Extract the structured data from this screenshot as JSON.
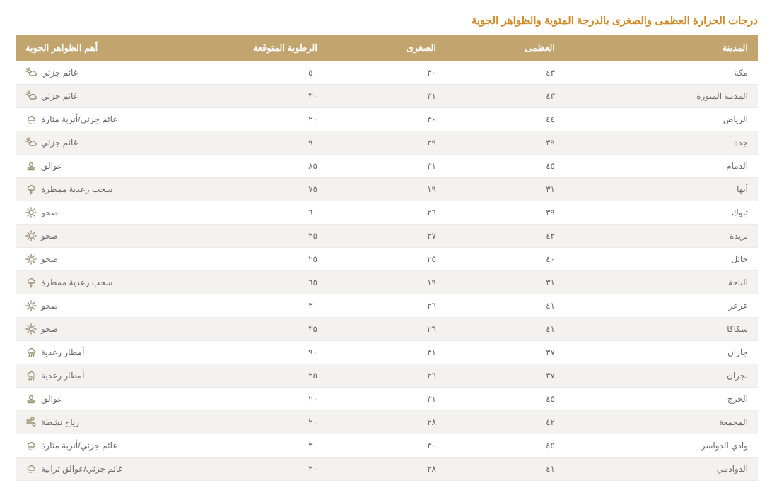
{
  "title": "درجات الحرارة العظمى والصغرى بالدرجة المئوية والظواهر الجوية",
  "title_color": "#d08c2a",
  "header_bg": "#c2a46f",
  "row_alt_bg": "#f3f2ee",
  "row_bg": "#ffffff",
  "border_color": "#eaeaea",
  "columns": {
    "city": "المدينة",
    "high": "العظمى",
    "low": "الصغرى",
    "humidity": "الرطوبة المتوقعة",
    "phenomena": "أهم الظواهر الجوية"
  },
  "icon_labels": {
    "partly_cloudy": "غائم جزئي",
    "dusty": "غائم جزئي/أتربة مثارة",
    "hazy": "عوالق",
    "thunder": "سحب رعدية ممطرة",
    "clear": "صحو",
    "thunder_rain": "أمطار رعدية",
    "windy": "رياح نشطة",
    "dust_haze": "غائم جزئي/عوالق ترابية"
  },
  "rows": [
    {
      "city": "مكة",
      "high": "٤٣",
      "low": "٣٠",
      "humidity": "٥٠",
      "phen": "غائم جزئي",
      "icon": "partly_cloudy"
    },
    {
      "city": "المدينة المنورة",
      "high": "٤٣",
      "low": "٣١",
      "humidity": "٣٠",
      "phen": "غائم جزئي",
      "icon": "partly_cloudy"
    },
    {
      "city": "الرياض",
      "high": "٤٤",
      "low": "٣٠",
      "humidity": "٢٠",
      "phen": "غائم جزئي/أتربة مثارة",
      "icon": "dusty"
    },
    {
      "city": "جدة",
      "high": "٣٩",
      "low": "٢٩",
      "humidity": "٩٠",
      "phen": "غائم جزئي",
      "icon": "partly_cloudy"
    },
    {
      "city": "الدمام",
      "high": "٤٥",
      "low": "٣١",
      "humidity": "٨٥",
      "phen": "عوالق",
      "icon": "hazy"
    },
    {
      "city": "أبها",
      "high": "٣١",
      "low": "١٩",
      "humidity": "٧٥",
      "phen": "سحب رعدية ممطرة",
      "icon": "thunder"
    },
    {
      "city": "تبوك",
      "high": "٣٩",
      "low": "٢٦",
      "humidity": "٦٠",
      "phen": "صحو",
      "icon": "clear"
    },
    {
      "city": "بريدة",
      "high": "٤٢",
      "low": "٢٧",
      "humidity": "٢٥",
      "phen": "صحو",
      "icon": "clear"
    },
    {
      "city": "حائل",
      "high": "٤٠",
      "low": "٢٥",
      "humidity": "٢٥",
      "phen": "صحو",
      "icon": "clear"
    },
    {
      "city": "الباحة",
      "high": "٣١",
      "low": "١٩",
      "humidity": "٦٥",
      "phen": "سحب رعدية ممطرة",
      "icon": "thunder"
    },
    {
      "city": "عرعر",
      "high": "٤١",
      "low": "٢٦",
      "humidity": "٣٠",
      "phen": "صحو",
      "icon": "clear"
    },
    {
      "city": "سكاكا",
      "high": "٤١",
      "low": "٢٦",
      "humidity": "٣٥",
      "phen": "صحو",
      "icon": "clear"
    },
    {
      "city": "جازان",
      "high": "٣٧",
      "low": "٣١",
      "humidity": "٩٠",
      "phen": "أمطار رعدية",
      "icon": "thunder_rain"
    },
    {
      "city": "نجران",
      "high": "٣٧",
      "low": "٢٦",
      "humidity": "٢٥",
      "phen": "أمطار رعدية",
      "icon": "thunder_rain"
    },
    {
      "city": "الخرج",
      "high": "٤٥",
      "low": "٣١",
      "humidity": "٢٠",
      "phen": "عوالق",
      "icon": "hazy"
    },
    {
      "city": "المجمعة",
      "high": "٤٢",
      "low": "٢٨",
      "humidity": "٢٠",
      "phen": "رياح نشطة",
      "icon": "windy"
    },
    {
      "city": "وادي الدواسر",
      "high": "٤٥",
      "low": "٣٠",
      "humidity": "٣٠",
      "phen": "غائم جزئي/أتربة مثارة",
      "icon": "dusty"
    },
    {
      "city": "الدوادمي",
      "high": "٤١",
      "low": "٢٨",
      "humidity": "٢٠",
      "phen": "غائم جزئي/عوالق ترابية",
      "icon": "dust_haze"
    }
  ]
}
